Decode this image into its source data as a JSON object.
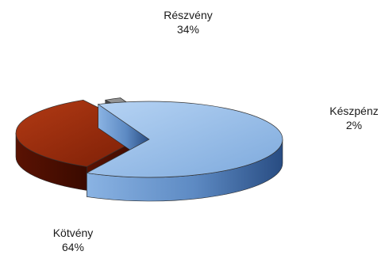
{
  "chart_data": {
    "type": "pie",
    "style": "3d-exploded",
    "slices": [
      {
        "label": "Részvény",
        "value": 34,
        "value_label": "34%",
        "color": "#9a2a0c"
      },
      {
        "label": "Készpénz",
        "value": 2,
        "value_label": "2%",
        "color": "#7c7c7c"
      },
      {
        "label": "Kötvény",
        "value": 64,
        "value_label": "64%",
        "color": "#8cb7e6"
      }
    ]
  }
}
